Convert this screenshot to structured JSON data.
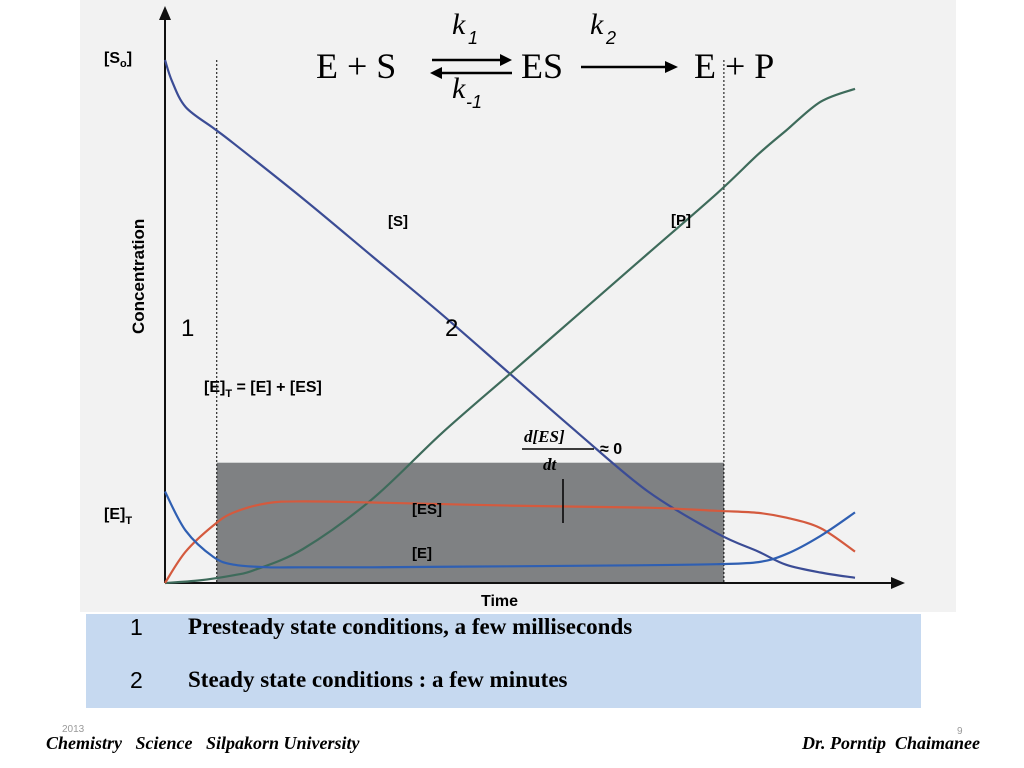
{
  "reaction": {
    "left": "E + S",
    "middle": "ES",
    "right": "E + P",
    "k1": "k",
    "k1_sub": "1",
    "k2": "k",
    "k2_sub": "2",
    "km1": "k",
    "km1_sub": "-1"
  },
  "chart_data": {
    "type": "line",
    "xlabel": "Time",
    "ylabel": "Concentration",
    "y_tick_labels": [
      "[S0]",
      "[E]T"
    ],
    "x_range": [
      0,
      100
    ],
    "y_range": [
      0,
      100
    ],
    "series": [
      {
        "name": "[S]",
        "color": "#3b4c95",
        "x": [
          0,
          1,
          3,
          7,
          10,
          20,
          30,
          40,
          50,
          60,
          70,
          80,
          86,
          90,
          95,
          100
        ],
        "y": [
          100,
          96,
          91,
          87,
          84,
          73.5,
          62.5,
          51.5,
          40,
          28.5,
          17.5,
          9.5,
          6,
          3.5,
          2,
          1
        ]
      },
      {
        "name": "[P]",
        "color": "#3e6b5b",
        "x": [
          0,
          5,
          10,
          13,
          20,
          30,
          40,
          50,
          60,
          70,
          80,
          86,
          90,
          95,
          100
        ],
        "y": [
          0,
          0.5,
          1.5,
          2.5,
          6.5,
          16,
          28.5,
          40,
          51.5,
          63,
          74.5,
          82,
          86.5,
          92,
          94.5
        ]
      },
      {
        "name": "[ES]",
        "color": "#d45a3e",
        "x": [
          0,
          3,
          7,
          10,
          15,
          20,
          30,
          50,
          70,
          80,
          86,
          90,
          95,
          100
        ],
        "y": [
          0,
          6,
          11,
          13.5,
          15.3,
          15.6,
          15.4,
          14.8,
          14.4,
          13.8,
          13.4,
          12.5,
          10.5,
          6
        ]
      },
      {
        "name": "[E]",
        "color": "#2f5fb2",
        "x": [
          0,
          3,
          7,
          10,
          15,
          20,
          30,
          50,
          70,
          80,
          86,
          90,
          95,
          100
        ],
        "y": [
          17.5,
          10,
          5,
          3.5,
          3,
          3,
          3,
          3.2,
          3.4,
          3.6,
          4,
          5.5,
          9,
          13.5
        ]
      }
    ],
    "series_labels": [
      "[S]",
      "[P]",
      "[ES]",
      "[E]"
    ],
    "region_labels": [
      "1",
      "2"
    ],
    "annotations": {
      "enzyme_total": "[E]T = [E] + [ES]",
      "steady_numerator": "d[ES]",
      "steady_denominator": "dt",
      "steady_rhs": "≈ 0"
    },
    "steady_state_region": {
      "x_start": 7.5,
      "x_end": 81,
      "y_top": 23,
      "color": "#7f8183"
    },
    "presteady_boundary_x": 7.5,
    "grid": false
  },
  "legend": {
    "rows": [
      {
        "num": "1",
        "text": "Presteady state conditions, a  few   milliseconds"
      },
      {
        "num": "2",
        "text": "Steady state conditions : a  few  minutes"
      }
    ]
  },
  "footer": {
    "left": "Chemistry   Science   Silpakorn University",
    "right": "Dr. Porntip  Chaimanee",
    "year": "2013",
    "page": "9"
  }
}
